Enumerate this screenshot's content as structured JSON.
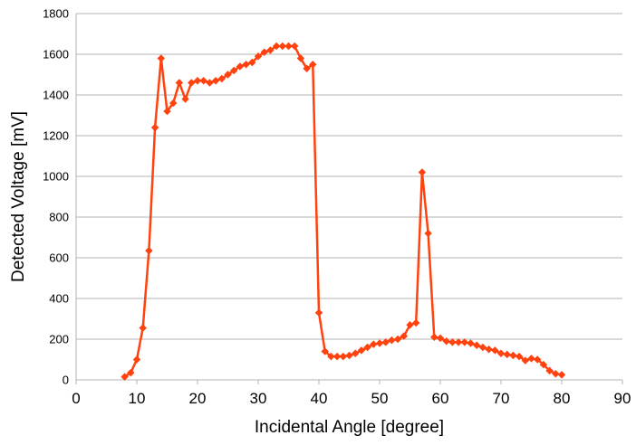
{
  "chart_data": {
    "type": "line",
    "title": "",
    "xlabel": "Incidental Angle [degree]",
    "ylabel": "Detected Voltage [mV]",
    "xlim": [
      0,
      90
    ],
    "ylim": [
      0,
      1800
    ],
    "xticks": [
      "0",
      "10",
      "20",
      "30",
      "40",
      "50",
      "60",
      "70",
      "80",
      "90"
    ],
    "yticks": [
      "0",
      "200",
      "400",
      "600",
      "800",
      "1000",
      "1200",
      "1400",
      "1600",
      "1800"
    ],
    "grid": "horizontal",
    "legend": "none",
    "marker": "diamond",
    "color": "#ff420e",
    "series": [
      {
        "x": [
          8,
          9,
          10,
          11,
          12,
          13,
          14,
          15,
          16,
          17,
          18,
          19,
          20,
          21,
          22,
          23,
          24,
          25,
          26,
          27,
          28,
          29,
          30,
          31,
          32,
          33,
          34,
          35,
          36,
          37,
          38,
          39,
          40,
          41,
          42,
          43,
          44,
          45,
          46,
          47,
          48,
          49,
          50,
          51,
          52,
          53,
          54,
          55,
          56,
          57,
          58,
          59,
          60,
          61,
          62,
          63,
          64,
          65,
          66,
          67,
          68,
          69,
          70,
          71,
          72,
          73,
          74,
          75,
          76,
          77,
          78,
          79,
          80
        ],
        "y": [
          15,
          35,
          100,
          255,
          635,
          1240,
          1580,
          1320,
          1360,
          1460,
          1380,
          1460,
          1470,
          1470,
          1460,
          1470,
          1480,
          1500,
          1520,
          1540,
          1550,
          1560,
          1590,
          1610,
          1620,
          1640,
          1640,
          1640,
          1640,
          1580,
          1530,
          1550,
          330,
          140,
          115,
          115,
          115,
          120,
          130,
          145,
          160,
          175,
          180,
          185,
          195,
          200,
          215,
          270,
          280,
          1020,
          720,
          210,
          205,
          190,
          185,
          185,
          185,
          180,
          170,
          160,
          150,
          145,
          130,
          125,
          120,
          115,
          95,
          105,
          100,
          75,
          45,
          30,
          25
        ]
      }
    ]
  }
}
